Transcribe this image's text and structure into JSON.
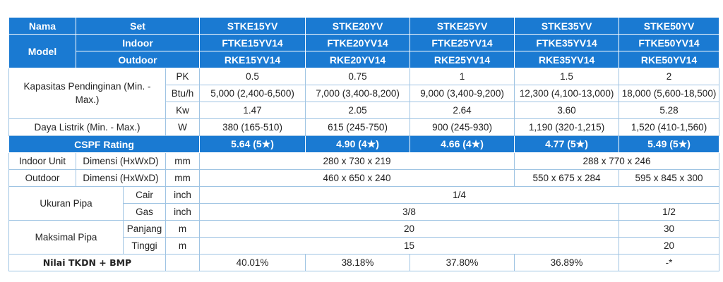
{
  "header": {
    "nama": "Nama",
    "model": "Model",
    "set": "Set",
    "indoor": "Indoor",
    "outdoor": "Outdoor",
    "sets": [
      "STKE15YV",
      "STKE20YV",
      "STKE25YV",
      "STKE35YV",
      "STKE50YV"
    ],
    "indoor_units": [
      "FTKE15YV14",
      "FTKE20YV14",
      "FTKE25YV14",
      "FTKE35YV14",
      "FTKE50YV14"
    ],
    "outdoor_units": [
      "RKE15YV14",
      "RKE20YV14",
      "RKE25YV14",
      "RKE35YV14",
      "RKE50YV14"
    ]
  },
  "capacity": {
    "label": "Kapasitas Pendinginan (Min. - Max.)",
    "pk_unit": "PK",
    "pk": [
      "0.5",
      "0.75",
      "1",
      "1.5",
      "2"
    ],
    "btu_unit": "Btu/h",
    "btu": [
      "5,000 (2,400-6,500)",
      "7,000 (3,400-8,200)",
      "9,000 (3,400-9,200)",
      "12,300 (4,100-13,000)",
      "18,000 (5,600-18,500)"
    ],
    "kw_unit": "Kw",
    "kw": [
      "1.47",
      "2.05",
      "2.64",
      "3.60",
      "5.28"
    ]
  },
  "power": {
    "label": "Daya Listrik (Min. - Max.)",
    "unit": "W",
    "values": [
      "380 (165-510)",
      "615 (245-750)",
      "900 (245-930)",
      "1,190 (320-1,215)",
      "1,520 (410-1,560)"
    ]
  },
  "cspf": {
    "label": "CSPF Rating",
    "values": [
      "5.64 (5★)",
      "4.90 (4★)",
      "4.66 (4★)",
      "4.77 (5★)",
      "5.49 (5★)"
    ]
  },
  "indoor_unit": {
    "label": "Indoor Unit",
    "dim_label": "Dimensi (HxWxD)",
    "unit": "mm",
    "dim_small": "280 x 730 x 219",
    "dim_large": "288 x 770 x 246"
  },
  "outdoor_unit": {
    "label": "Outdoor",
    "dim_label": "Dimensi (HxWxD)",
    "unit": "mm",
    "dim_small": "460 x 650 x 240",
    "dim_35": "550 x 675 x 284",
    "dim_50": "595 x 845 x 300"
  },
  "pipe_size": {
    "label": "Ukuran Pipa",
    "liquid_label": "Cair",
    "liquid_unit": "inch",
    "liquid_value": "1/4",
    "gas_label": "Gas",
    "gas_unit": "inch",
    "gas_small": "3/8",
    "gas_large": "1/2"
  },
  "max_pipe": {
    "label": "Maksimal Pipa",
    "length_label": "Panjang",
    "length_unit": "m",
    "length_small": "20",
    "length_large": "30",
    "height_label": "Tinggi",
    "height_unit": "m",
    "height_small": "15",
    "height_large": "20"
  },
  "tkdn": {
    "label": "Nilai TKDN + BMP",
    "values": [
      "40.01%",
      "38.18%",
      "37.80%",
      "36.89%",
      "-*"
    ]
  }
}
